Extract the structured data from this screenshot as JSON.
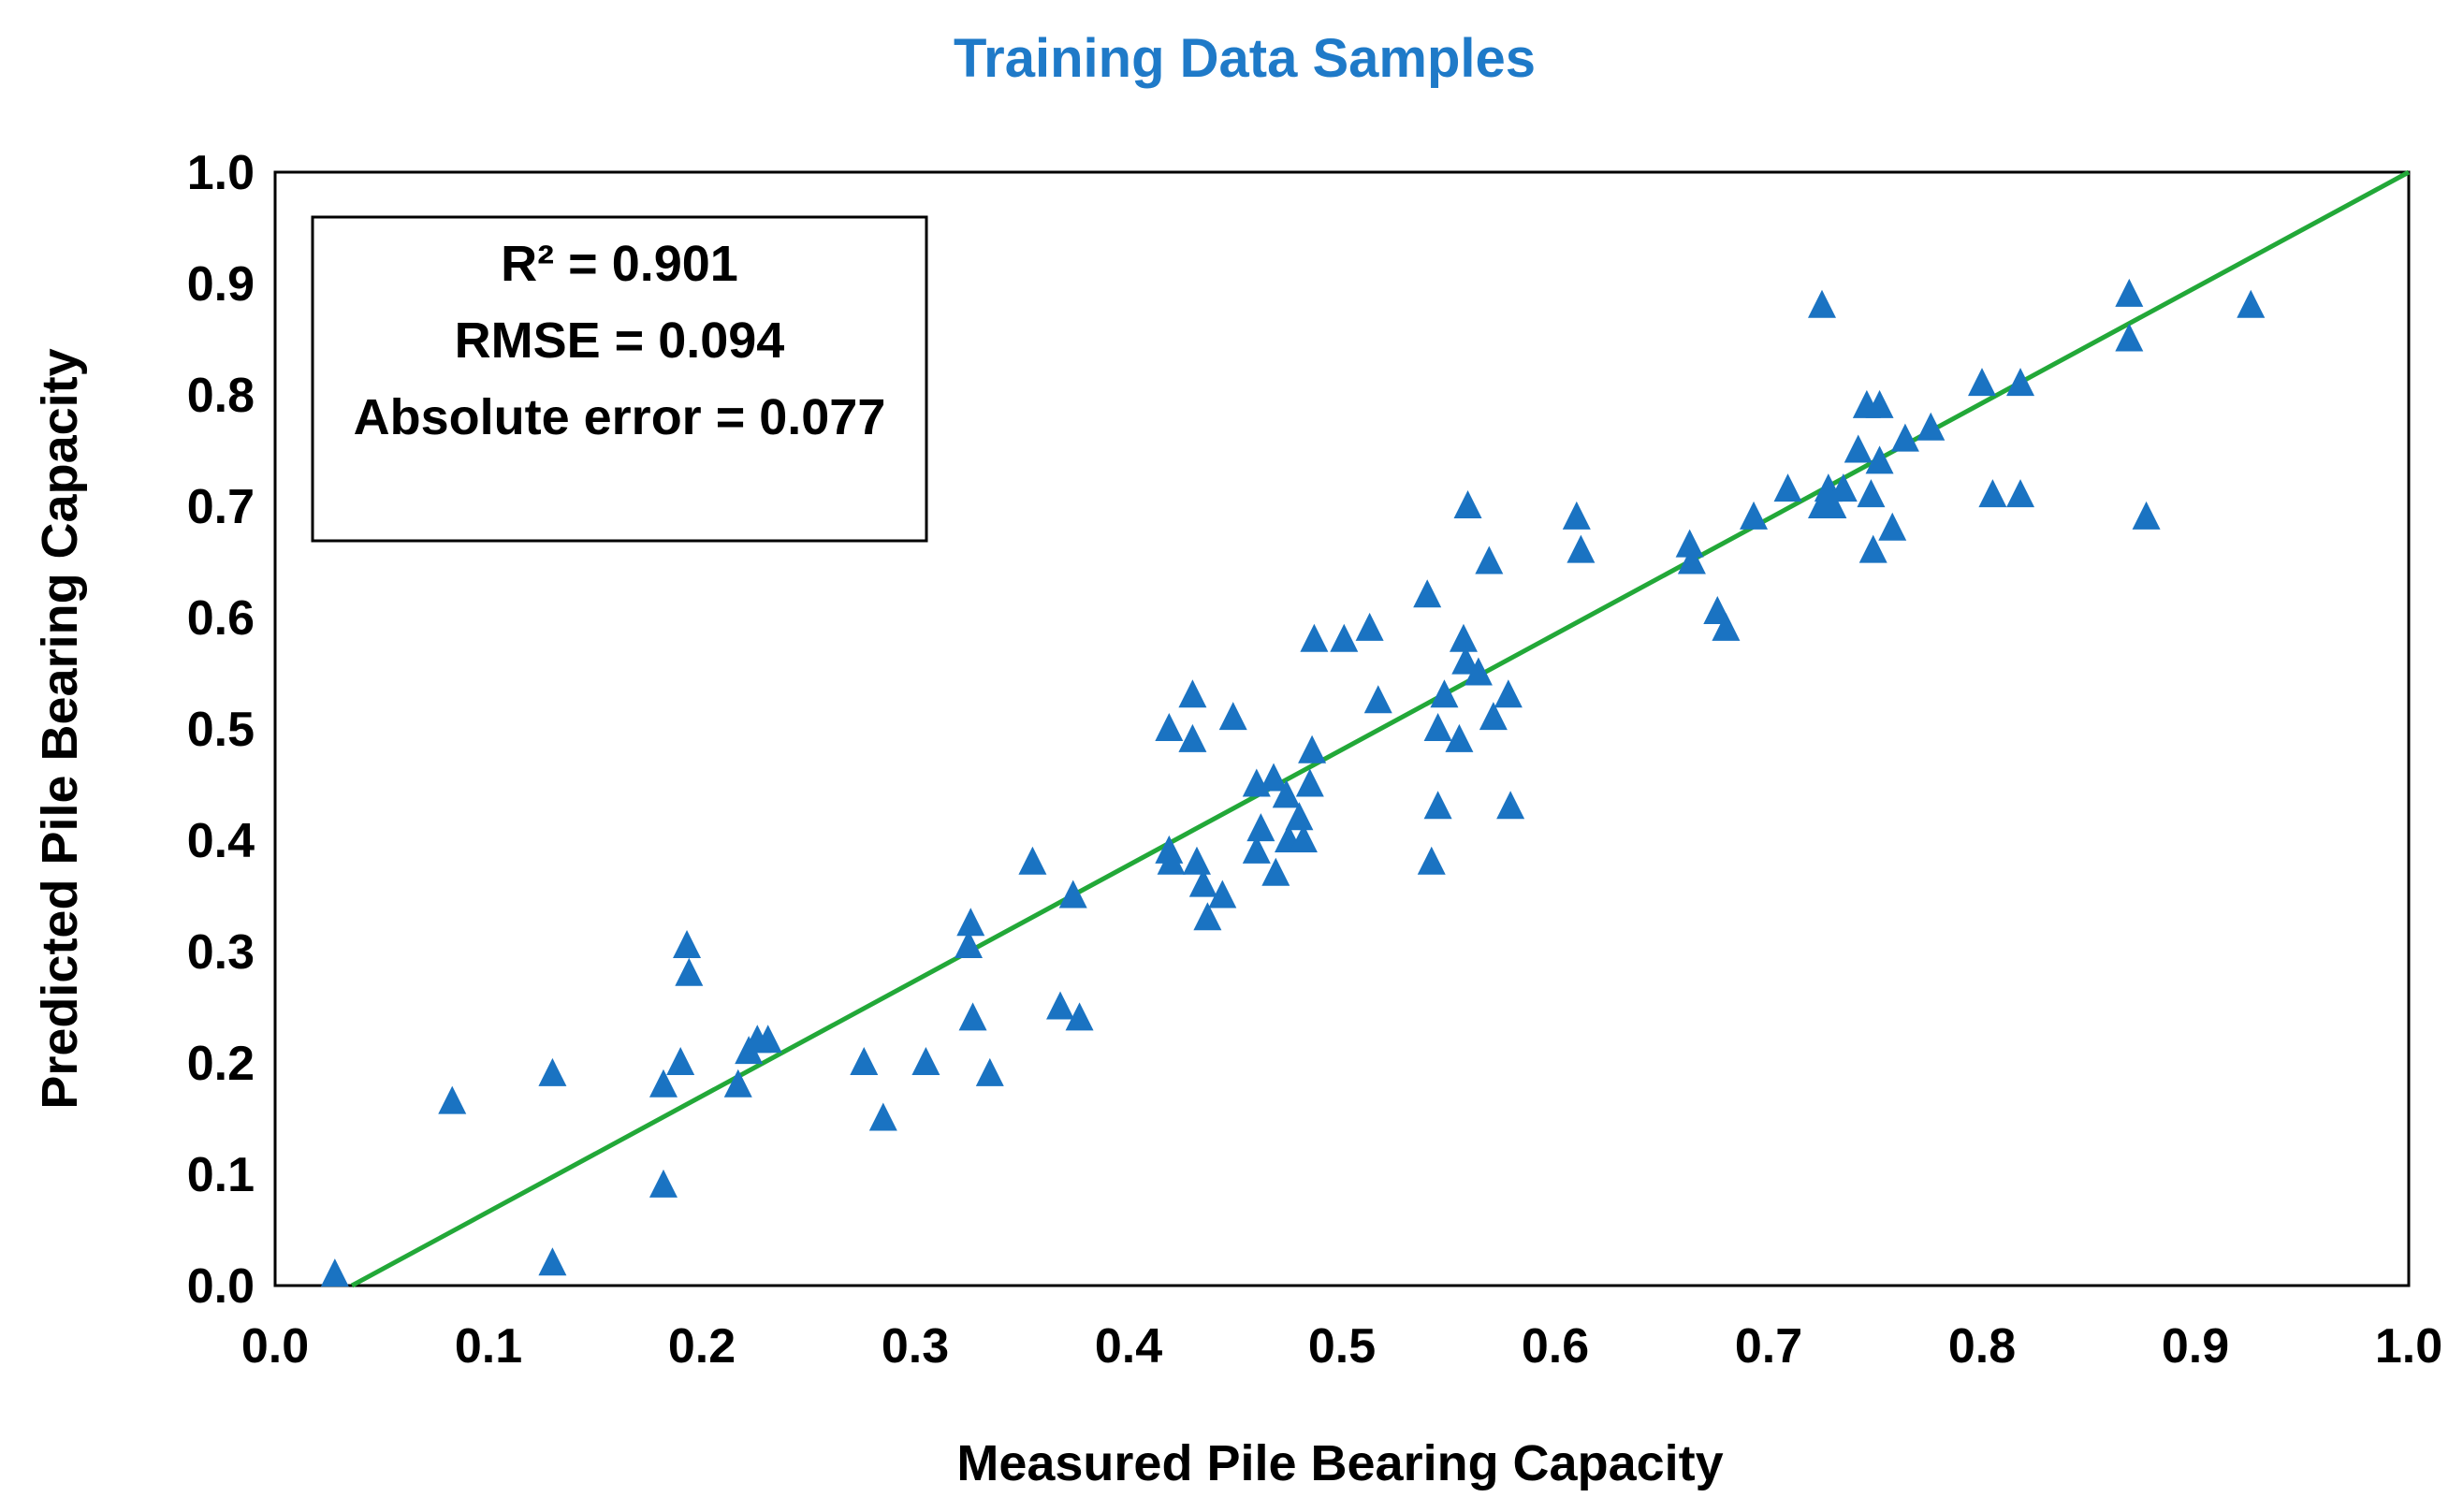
{
  "chart_data": {
    "type": "scatter",
    "title": "Training Data Samples",
    "xlabel": "Measured Pile Bearing Capacity",
    "ylabel": "Predicted Pile Bearing Capacity",
    "xlim": [
      0.0,
      1.0
    ],
    "ylim": [
      0.0,
      1.0
    ],
    "xticks": [
      "0.0",
      "0.1",
      "0.2",
      "0.3",
      "0.4",
      "0.5",
      "0.6",
      "0.7",
      "0.8",
      "0.9",
      "1.0"
    ],
    "yticks": [
      "0.0",
      "0.1",
      "0.2",
      "0.3",
      "0.4",
      "0.5",
      "0.6",
      "0.7",
      "0.8",
      "0.9",
      "1.0"
    ],
    "grid": false,
    "stats": {
      "r2": "R² = 0.901",
      "rmse": "RMSE = 0.094",
      "abs_error": "Absolute error = 0.077"
    },
    "fit_line": {
      "name": "fit",
      "color": "#22a838",
      "points": [
        [
          0.036,
          0.0
        ],
        [
          1.0,
          1.0
        ]
      ]
    },
    "series": [
      {
        "name": "Training samples",
        "marker": "triangle",
        "color": "#1a73c2",
        "points": [
          [
            0.028,
            0.01
          ],
          [
            0.083,
            0.165
          ],
          [
            0.13,
            0.19
          ],
          [
            0.13,
            0.02
          ],
          [
            0.182,
            0.18
          ],
          [
            0.182,
            0.09
          ],
          [
            0.19,
            0.2
          ],
          [
            0.193,
            0.305
          ],
          [
            0.194,
            0.28
          ],
          [
            0.217,
            0.18
          ],
          [
            0.222,
            0.21
          ],
          [
            0.226,
            0.22
          ],
          [
            0.231,
            0.22
          ],
          [
            0.276,
            0.2
          ],
          [
            0.285,
            0.15
          ],
          [
            0.305,
            0.2
          ],
          [
            0.325,
            0.305
          ],
          [
            0.326,
            0.325
          ],
          [
            0.327,
            0.24
          ],
          [
            0.335,
            0.19
          ],
          [
            0.355,
            0.38
          ],
          [
            0.368,
            0.25
          ],
          [
            0.374,
            0.35
          ],
          [
            0.377,
            0.24
          ],
          [
            0.419,
            0.5
          ],
          [
            0.419,
            0.39
          ],
          [
            0.42,
            0.38
          ],
          [
            0.43,
            0.53
          ],
          [
            0.43,
            0.49
          ],
          [
            0.432,
            0.38
          ],
          [
            0.435,
            0.36
          ],
          [
            0.437,
            0.33
          ],
          [
            0.444,
            0.35
          ],
          [
            0.449,
            0.51
          ],
          [
            0.46,
            0.45
          ],
          [
            0.46,
            0.39
          ],
          [
            0.462,
            0.41
          ],
          [
            0.468,
            0.455
          ],
          [
            0.469,
            0.37
          ],
          [
            0.474,
            0.44
          ],
          [
            0.475,
            0.4
          ],
          [
            0.48,
            0.42
          ],
          [
            0.482,
            0.4
          ],
          [
            0.485,
            0.45
          ],
          [
            0.486,
            0.48
          ],
          [
            0.487,
            0.58
          ],
          [
            0.501,
            0.58
          ],
          [
            0.513,
            0.59
          ],
          [
            0.517,
            0.525
          ],
          [
            0.54,
            0.62
          ],
          [
            0.542,
            0.38
          ],
          [
            0.545,
            0.43
          ],
          [
            0.545,
            0.5
          ],
          [
            0.548,
            0.53
          ],
          [
            0.555,
            0.49
          ],
          [
            0.557,
            0.58
          ],
          [
            0.558,
            0.56
          ],
          [
            0.559,
            0.7
          ],
          [
            0.564,
            0.55
          ],
          [
            0.569,
            0.65
          ],
          [
            0.571,
            0.51
          ],
          [
            0.578,
            0.53
          ],
          [
            0.579,
            0.43
          ],
          [
            0.61,
            0.69
          ],
          [
            0.612,
            0.66
          ],
          [
            0.663,
            0.665
          ],
          [
            0.664,
            0.65
          ],
          [
            0.676,
            0.605
          ],
          [
            0.68,
            0.59
          ],
          [
            0.693,
            0.69
          ],
          [
            0.709,
            0.715
          ],
          [
            0.725,
            0.88
          ],
          [
            0.725,
            0.7
          ],
          [
            0.728,
            0.715
          ],
          [
            0.73,
            0.7
          ],
          [
            0.735,
            0.715
          ],
          [
            0.742,
            0.75
          ],
          [
            0.746,
            0.79
          ],
          [
            0.748,
            0.71
          ],
          [
            0.749,
            0.66
          ],
          [
            0.752,
            0.79
          ],
          [
            0.752,
            0.74
          ],
          [
            0.758,
            0.68
          ],
          [
            0.764,
            0.76
          ],
          [
            0.776,
            0.77
          ],
          [
            0.8,
            0.81
          ],
          [
            0.805,
            0.71
          ],
          [
            0.818,
            0.81
          ],
          [
            0.818,
            0.71
          ],
          [
            0.869,
            0.89
          ],
          [
            0.869,
            0.85
          ],
          [
            0.877,
            0.69
          ],
          [
            0.926,
            0.88
          ]
        ]
      }
    ]
  }
}
